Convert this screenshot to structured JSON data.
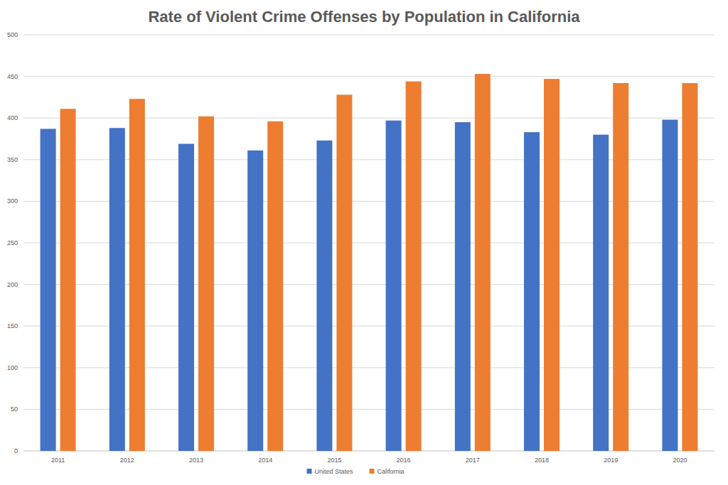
{
  "chart_data": {
    "type": "bar",
    "title": "Rate of Violent Crime Offenses by Population in California",
    "categories": [
      "2011",
      "2012",
      "2013",
      "2014",
      "2015",
      "2016",
      "2017",
      "2018",
      "2019",
      "2020"
    ],
    "series": [
      {
        "name": "United States",
        "color": "#4472c4",
        "values": [
          387,
          388,
          369,
          361,
          373,
          397,
          395,
          383,
          380,
          398
        ]
      },
      {
        "name": "California",
        "color": "#ed7d31",
        "values": [
          411,
          423,
          402,
          396,
          428,
          444,
          453,
          447,
          442,
          442
        ]
      }
    ],
    "ylim": [
      0,
      500
    ],
    "yticks": [
      0,
      50,
      100,
      150,
      200,
      250,
      300,
      350,
      400,
      450,
      500
    ],
    "grid": true,
    "legend": "bottom"
  }
}
